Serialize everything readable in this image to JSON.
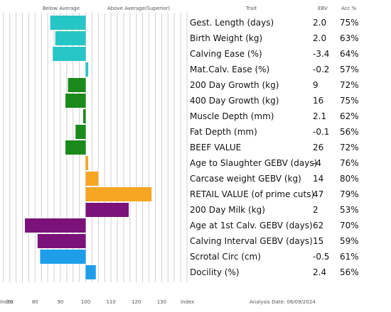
{
  "header": {
    "below_label": "Below Average",
    "above_label": "Above Average(Superior)",
    "trait_label": "Trait",
    "ebv_label": "EBV",
    "acc_label": "Acc %"
  },
  "footer": {
    "index_label_left": "Index",
    "index_label_right": "Index",
    "analysis_date": "Analysis Date: 06/09/2024"
  },
  "colors": {
    "teal": "#26c6c6",
    "green": "#1a8a1a",
    "orange": "#f6a623",
    "purple": "#7a127a",
    "blue": "#1e9eea",
    "grid": "#d0d0d0"
  },
  "chart_data": {
    "type": "bar",
    "orientation": "horizontal",
    "baseline": 100,
    "xlim": [
      67,
      140
    ],
    "x_ticks": [
      70,
      80,
      90,
      100,
      110,
      120,
      130
    ],
    "categories": [
      "Gest. Length (days)",
      "Birth Weight (kg)",
      "Calving Ease (%)",
      "Mat.Calv. Ease (%)",
      "200 Day Growth (kg)",
      "400 Day Growth (kg)",
      "Muscle Depth (mm)",
      "Fat Depth (mm)",
      "BEEF VALUE",
      "Age to Slaughter GEBV (days)",
      "Carcase weight GEBV (kg)",
      "RETAIL VALUE (of prime cuts)",
      "200 Day Milk (kg)",
      "Age at 1st Calv. GEBV (days)",
      "Calving Interval GEBV (days)",
      "Scrotal Circ (cm)",
      "Docility (%)"
    ],
    "values": [
      86,
      88,
      87,
      101,
      93,
      92,
      99,
      96,
      92,
      101,
      105,
      126,
      117,
      76,
      81,
      82,
      104
    ],
    "bar_colors": [
      "teal",
      "teal",
      "teal",
      "teal",
      "green",
      "green",
      "green",
      "green",
      "green",
      "orange",
      "orange",
      "orange",
      "purple",
      "purple",
      "purple",
      "blue",
      "blue"
    ],
    "ebv": [
      "2.0",
      "2.0",
      "-3.4",
      "-0.2",
      "9",
      "16",
      "2.1",
      "-0.1",
      "26",
      "-4",
      "14",
      "47",
      "2",
      "62",
      "15",
      "-0.5",
      "2.4"
    ],
    "acc": [
      "75%",
      "63%",
      "64%",
      "57%",
      "72%",
      "75%",
      "62%",
      "56%",
      "72%",
      "76%",
      "80%",
      "79%",
      "53%",
      "70%",
      "59%",
      "61%",
      "56%"
    ],
    "grid": true
  }
}
